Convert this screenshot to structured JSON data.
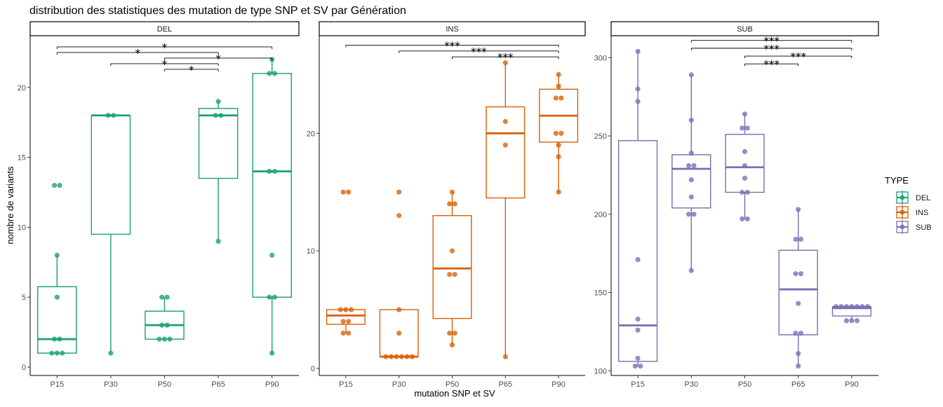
{
  "chart_data": {
    "type": "box",
    "title": "distribution des statistiques des mutation de type SNP et SV par Génération",
    "xlabel": "mutation SNP et SV",
    "ylabel": "nombre de variants",
    "categories": [
      "P15",
      "P30",
      "P50",
      "P65",
      "P90"
    ],
    "legend": {
      "title": "TYPE",
      "position": "right",
      "entries": [
        {
          "name": "DEL",
          "color": "#1b9e77"
        },
        {
          "name": "INS",
          "color": "#d95f02"
        },
        {
          "name": "SUB",
          "color": "#7570b3"
        }
      ]
    },
    "grid": false,
    "panels": [
      {
        "name": "DEL",
        "color": "#1b9e77",
        "ylim": [
          -0.6,
          23.7
        ],
        "yticks": [
          0,
          5,
          10,
          15,
          20
        ],
        "boxes": [
          {
            "category": "P15",
            "lower": 1,
            "q1": 1,
            "median": 2,
            "q3": 5.75,
            "upper": 8,
            "points": [
              1,
              1,
              1,
              2,
              2,
              5,
              8,
              13,
              13
            ]
          },
          {
            "category": "P30",
            "lower": 1,
            "q1": 9.5,
            "median": 18,
            "q3": 18,
            "upper": 18,
            "points": [
              1,
              18,
              18
            ]
          },
          {
            "category": "P50",
            "lower": 2,
            "q1": 2,
            "median": 3,
            "q3": 4,
            "upper": 5,
            "points": [
              2,
              2,
              2,
              3,
              3,
              5,
              5
            ]
          },
          {
            "category": "P65",
            "lower": 9,
            "q1": 13.5,
            "median": 18,
            "q3": 18.5,
            "upper": 19,
            "points": [
              9,
              18,
              18,
              19
            ]
          },
          {
            "category": "P90",
            "lower": 1,
            "q1": 5,
            "median": 14,
            "q3": 21,
            "upper": 22,
            "points": [
              1,
              5,
              5,
              8,
              14,
              14,
              21,
              21,
              22
            ]
          }
        ],
        "comparisons": [
          {
            "from": "P15",
            "to": "P90",
            "y": 22.9,
            "label": "*"
          },
          {
            "from": "P15",
            "to": "P65",
            "y": 22.5,
            "label": "*"
          },
          {
            "from": "P50",
            "to": "P90",
            "y": 22.1,
            "label": "*"
          },
          {
            "from": "P30",
            "to": "P65",
            "y": 21.7,
            "label": "*"
          },
          {
            "from": "P50",
            "to": "P65",
            "y": 21.3,
            "label": "*"
          }
        ]
      },
      {
        "name": "INS",
        "color": "#d95f02",
        "ylim": [
          -0.6,
          28.3
        ],
        "yticks": [
          0,
          10,
          20
        ],
        "boxes": [
          {
            "category": "P15",
            "lower": 3,
            "q1": 3.75,
            "median": 4.5,
            "q3": 5,
            "upper": 5,
            "points": [
              3,
              3,
              4,
              4,
              5,
              5,
              5,
              15,
              15
            ]
          },
          {
            "category": "P30",
            "lower": 1,
            "q1": 1,
            "median": 1,
            "q3": 5,
            "upper": 5,
            "points": [
              1,
              1,
              1,
              1,
              1,
              1,
              3,
              5,
              13,
              15
            ]
          },
          {
            "category": "P50",
            "lower": 2,
            "q1": 4.25,
            "median": 8.5,
            "q3": 13,
            "upper": 15,
            "points": [
              2,
              3,
              3,
              8,
              8,
              10,
              14,
              14,
              15
            ]
          },
          {
            "category": "P65",
            "lower": 1,
            "q1": 14.5,
            "median": 20,
            "q3": 22.25,
            "upper": 26,
            "points": [
              1,
              19,
              21,
              26
            ]
          },
          {
            "category": "P90",
            "lower": 15,
            "q1": 19.25,
            "median": 21.5,
            "q3": 23.75,
            "upper": 25,
            "points": [
              15,
              18,
              19,
              20,
              20,
              23,
              23,
              24,
              25
            ]
          }
        ],
        "comparisons": [
          {
            "from": "P15",
            "to": "P90",
            "y": 27.5,
            "label": "***"
          },
          {
            "from": "P30",
            "to": "P90",
            "y": 27.0,
            "label": "***"
          },
          {
            "from": "P50",
            "to": "P90",
            "y": 26.5,
            "label": "***"
          }
        ]
      },
      {
        "name": "SUB",
        "color": "#7570b3",
        "ylim": [
          97,
          314
        ],
        "yticks": [
          100,
          150,
          200,
          250,
          300
        ],
        "boxes": [
          {
            "category": "P15",
            "lower": 103,
            "q1": 106,
            "median": 129,
            "q3": 247,
            "upper": 304,
            "points": [
              103,
              103,
              108,
              126,
              133,
              171,
              272,
              280,
              304
            ]
          },
          {
            "category": "P30",
            "lower": 164,
            "q1": 204,
            "median": 229,
            "q3": 238,
            "upper": 289,
            "points": [
              164,
              200,
              200,
              211,
              222,
              231,
              231,
              239,
              260,
              289
            ]
          },
          {
            "category": "P50",
            "lower": 197,
            "q1": 214,
            "median": 230,
            "q3": 251,
            "upper": 264,
            "points": [
              197,
              197,
              214,
              214,
              223,
              231,
              240,
              255,
              255,
              264
            ]
          },
          {
            "category": "P65",
            "lower": 103,
            "q1": 123,
            "median": 152,
            "q3": 177,
            "upper": 203,
            "points": [
              103,
              111,
              124,
              124,
              143,
              162,
              162,
              184,
              184,
              203
            ]
          },
          {
            "category": "P90",
            "lower": 132,
            "q1": 135,
            "median": 140,
            "q3": 141,
            "upper": 142,
            "points": [
              132,
              132,
              132,
              141,
              141,
              141,
              141,
              141,
              141,
              141
            ]
          }
        ],
        "comparisons": [
          {
            "from": "P30",
            "to": "P90",
            "y": 311,
            "label": "***"
          },
          {
            "from": "P30",
            "to": "P90",
            "y": 306,
            "label": "***"
          },
          {
            "from": "P50",
            "to": "P90",
            "y": 301,
            "label": "***"
          },
          {
            "from": "P50",
            "to": "P65",
            "y": 296,
            "label": "***"
          }
        ]
      }
    ]
  }
}
